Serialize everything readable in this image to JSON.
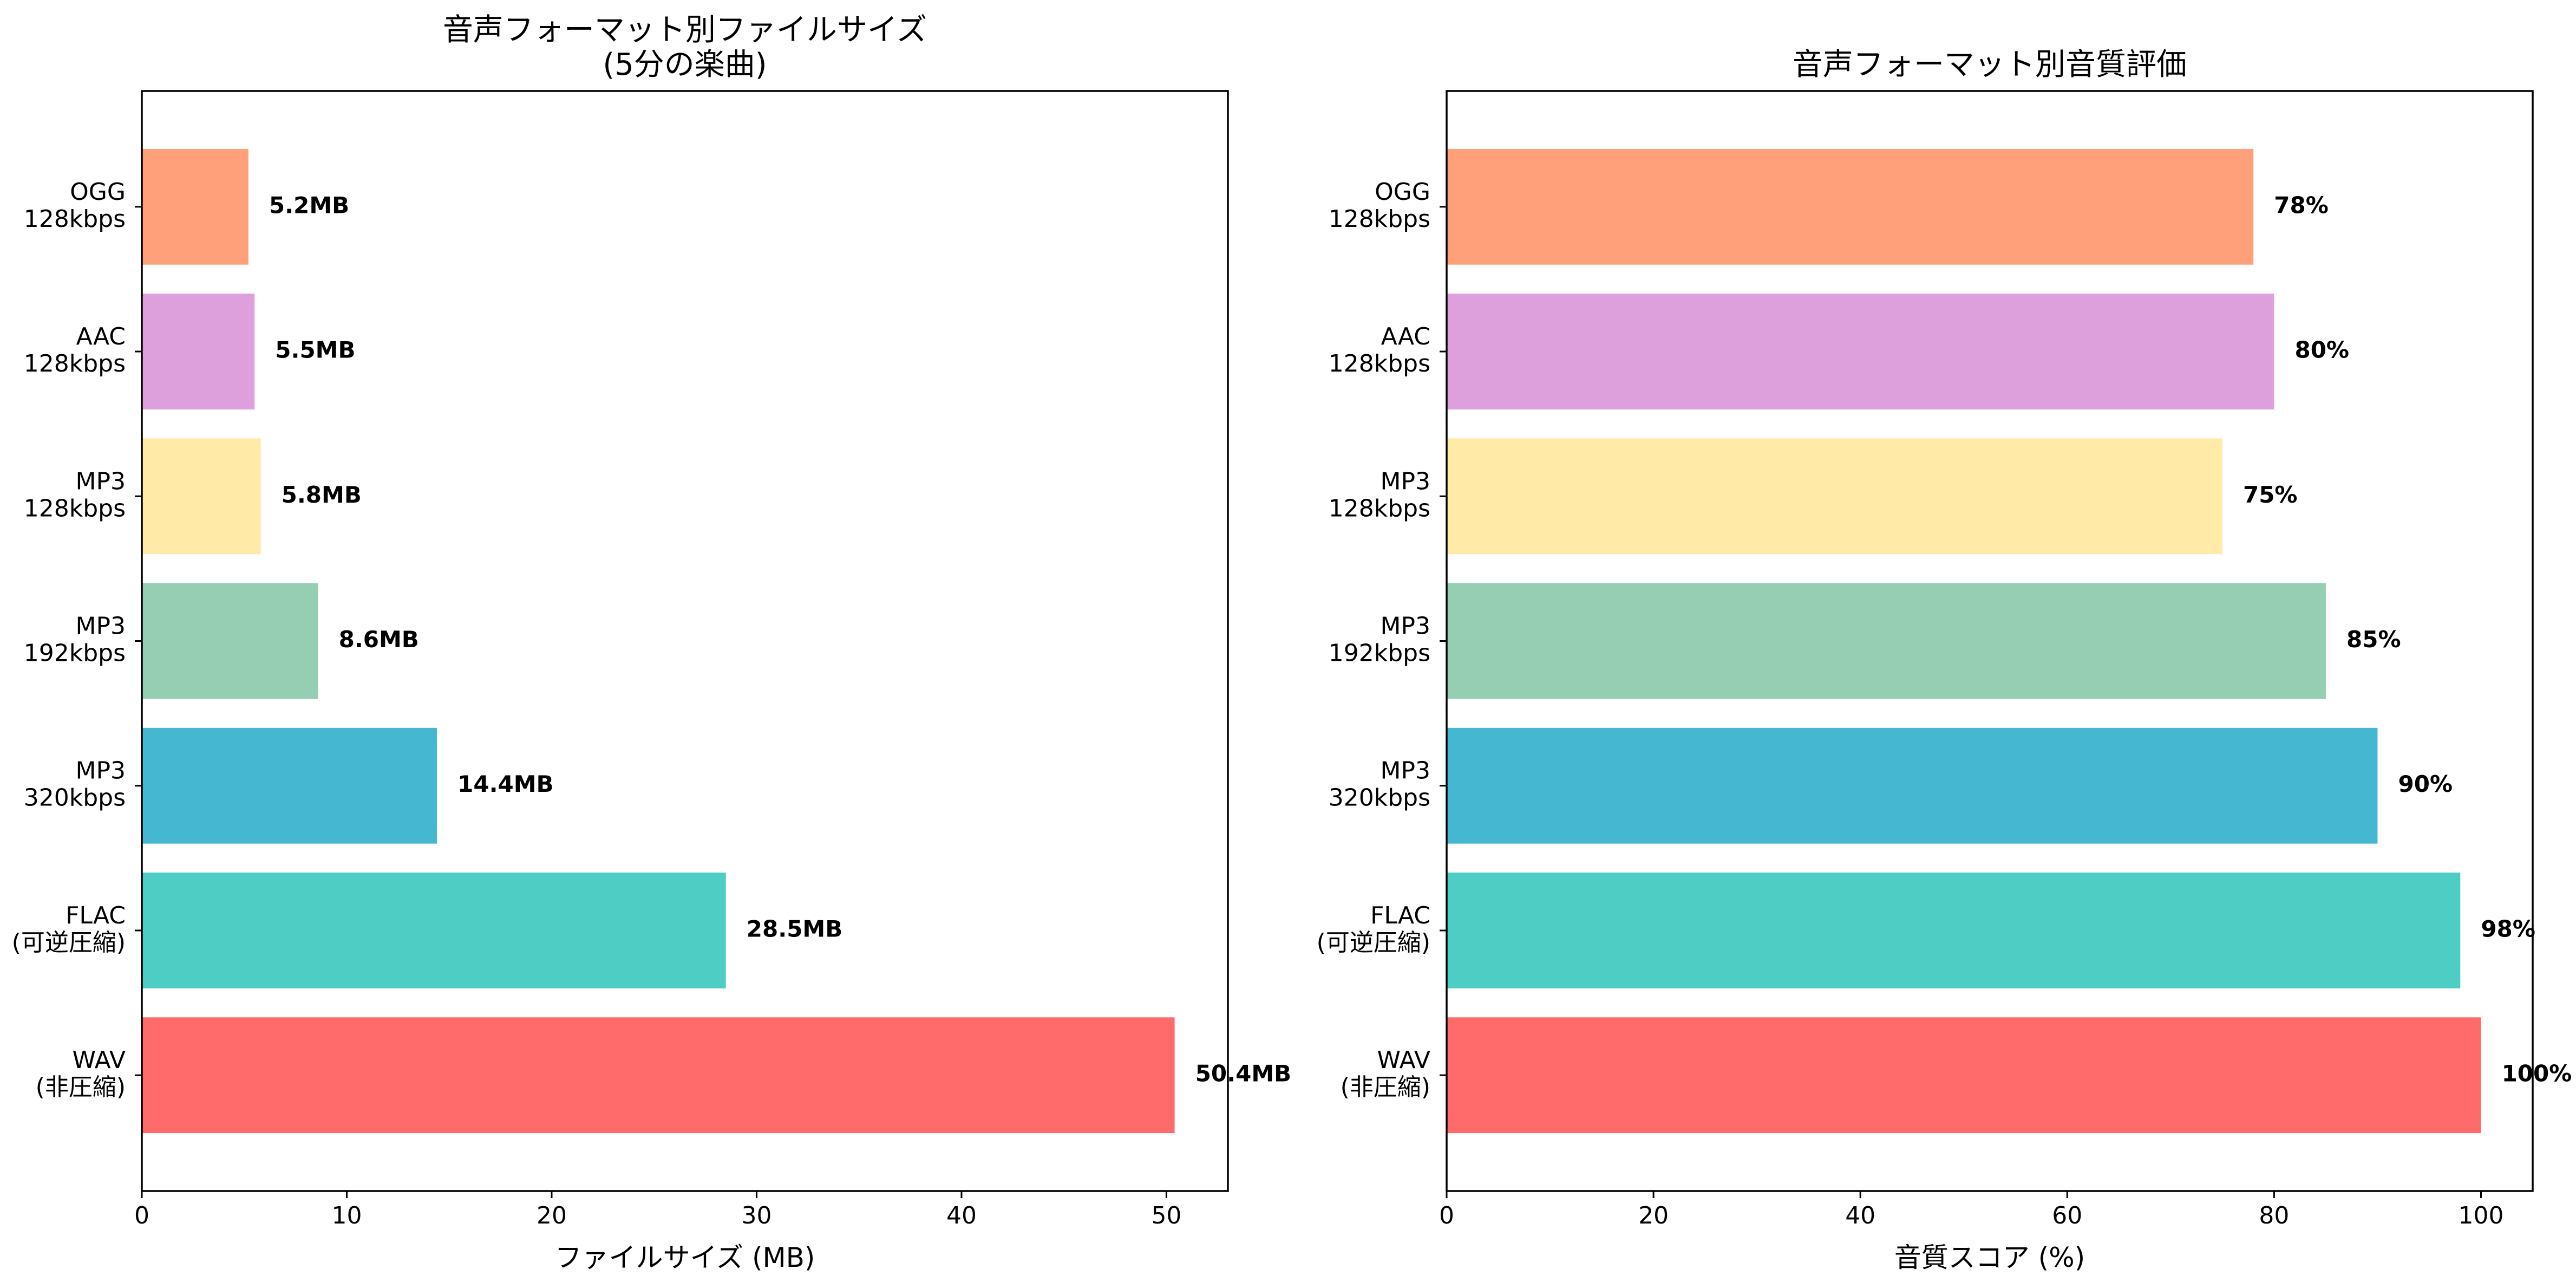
{
  "chart_data": [
    {
      "type": "bar",
      "orientation": "horizontal",
      "title": "音声フォーマット別ファイルサイズ\n(5分の楽曲)",
      "xlabel": "ファイルサイズ (MB)",
      "ylabel": "",
      "categories": [
        "WAV\n(非圧縮)",
        "FLAC\n(可逆圧縮)",
        "MP3\n320kbps",
        "MP3\n192kbps",
        "MP3\n128kbps",
        "AAC\n128kbps",
        "OGG\n128kbps"
      ],
      "values": [
        50.4,
        28.5,
        14.4,
        8.6,
        5.8,
        5.5,
        5.2
      ],
      "value_labels": [
        "50.4MB",
        "28.5MB",
        "14.4MB",
        "8.6MB",
        "5.8MB",
        "5.5MB",
        "5.2MB"
      ],
      "colors": [
        "#FF6B6B",
        "#4ECDC4",
        "#45B7D1",
        "#96CEB4",
        "#FFEAA7",
        "#DDA0DD",
        "#FFA07A"
      ],
      "xlim": [
        0,
        53
      ],
      "xticks": [
        0,
        10,
        20,
        30,
        40,
        50
      ],
      "grid": false
    },
    {
      "type": "bar",
      "orientation": "horizontal",
      "title": "音声フォーマット別音質評価",
      "xlabel": "音質スコア (%)",
      "ylabel": "",
      "categories": [
        "WAV\n(非圧縮)",
        "FLAC\n(可逆圧縮)",
        "MP3\n320kbps",
        "MP3\n192kbps",
        "MP3\n128kbps",
        "AAC\n128kbps",
        "OGG\n128kbps"
      ],
      "values": [
        100,
        98,
        90,
        85,
        75,
        80,
        78
      ],
      "value_labels": [
        "100%",
        "98%",
        "90%",
        "85%",
        "75%",
        "80%",
        "78%"
      ],
      "colors": [
        "#FF6B6B",
        "#4ECDC4",
        "#45B7D1",
        "#96CEB4",
        "#FFEAA7",
        "#DDA0DD",
        "#FFA07A"
      ],
      "xlim": [
        0,
        105
      ],
      "xticks": [
        0,
        20,
        40,
        60,
        80,
        100
      ],
      "grid": false
    }
  ]
}
